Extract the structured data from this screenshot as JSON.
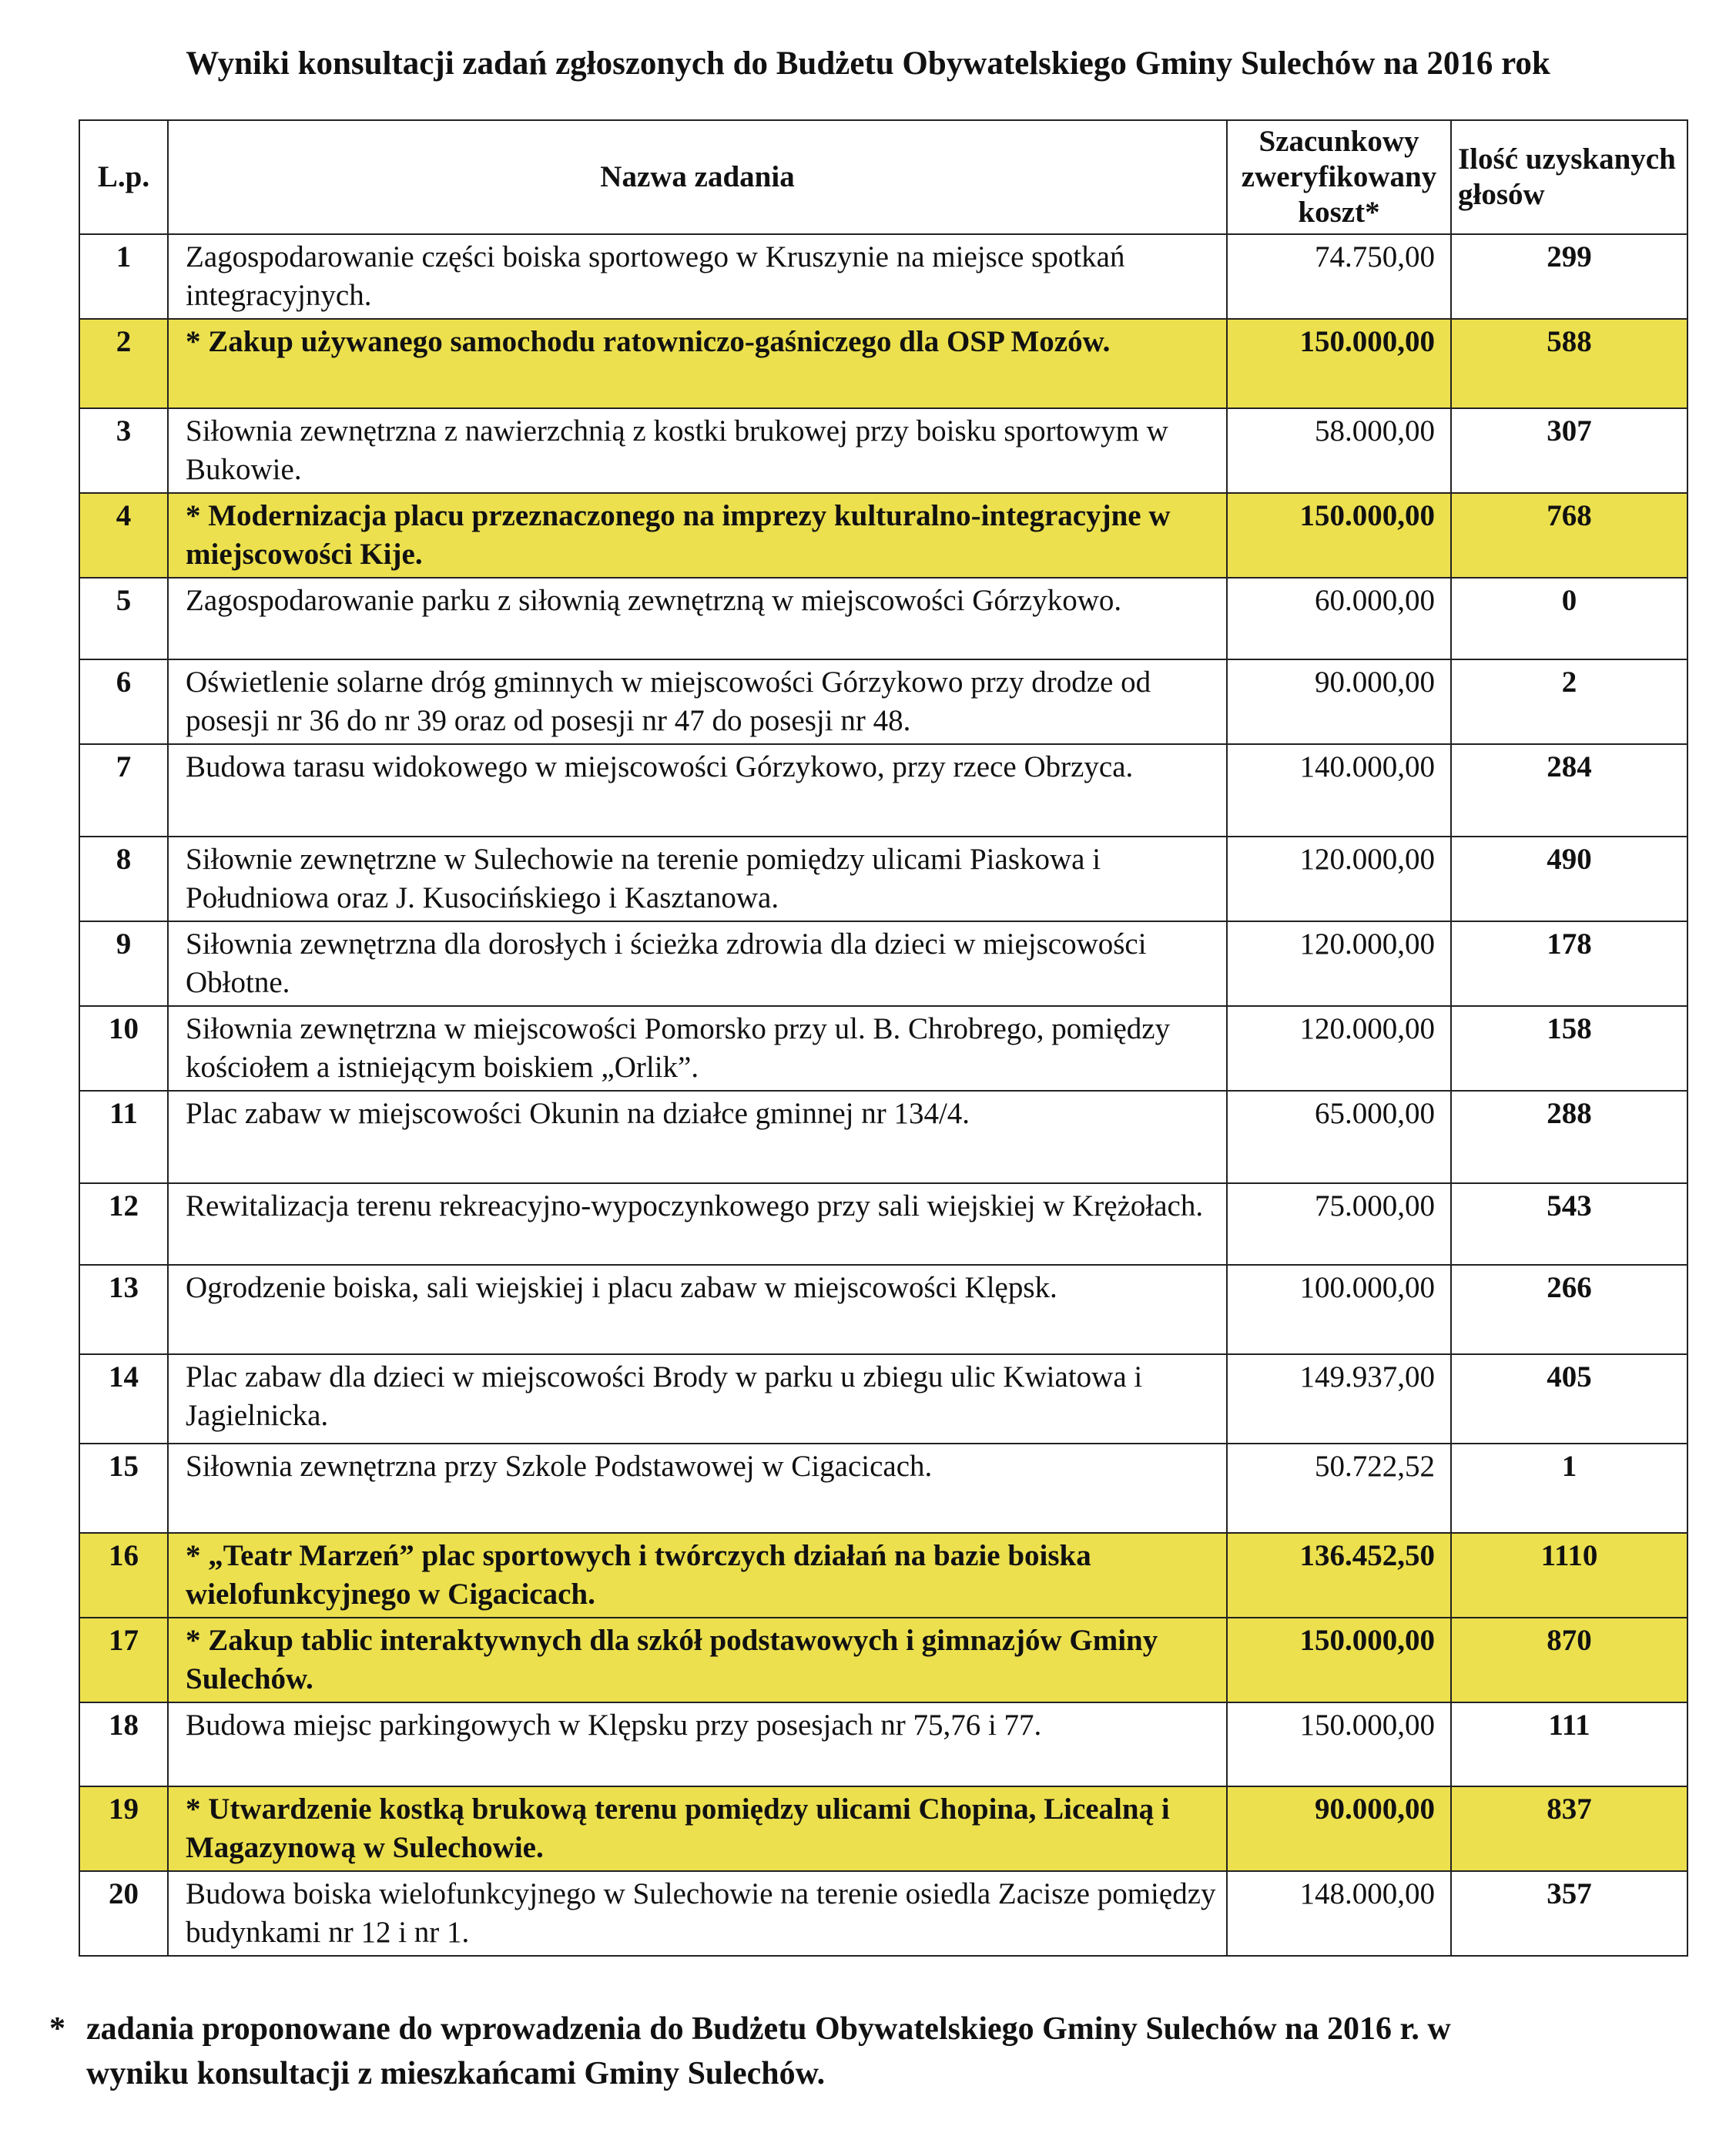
{
  "title": "Wyniki konsultacji zadań zgłoszonych do Budżetu Obywatelskiego Gminy Sulechów na 2016 rok",
  "highlight_color": "#ece04e",
  "table": {
    "headers": {
      "lp": "L.p.",
      "name": "Nazwa zadania",
      "cost": "Szacunkowy zweryfikowany koszt*",
      "votes": "Ilość uzyskanych głosów"
    },
    "rows": [
      {
        "lp": "1",
        "name": "Zagospodarowanie części boiska sportowego w Kruszynie na miejsce spotkań integracyjnych.",
        "cost": "74.750,00",
        "votes": "299",
        "highlighted": false
      },
      {
        "lp": "2",
        "name": "* Zakup używanego samochodu ratowniczo-gaśniczego dla OSP Mozów.",
        "cost": "150.000,00",
        "votes": "588",
        "highlighted": true
      },
      {
        "lp": "3",
        "name": "Siłownia zewnętrzna z nawierzchnią z kostki brukowej przy boisku sportowym w Bukowie.",
        "cost": "58.000,00",
        "votes": "307",
        "highlighted": false
      },
      {
        "lp": "4",
        "name": "* Modernizacja placu przeznaczonego na imprezy kulturalno-integracyjne w miejscowości Kije.",
        "cost": "150.000,00",
        "votes": "768",
        "highlighted": true
      },
      {
        "lp": "5",
        "name": "Zagospodarowanie parku z siłownią zewnętrzną w miejscowości Górzykowo.",
        "cost": "60.000,00",
        "votes": "0",
        "highlighted": false
      },
      {
        "lp": "6",
        "name": "Oświetlenie solarne dróg gminnych w miejscowości Górzykowo przy drodze od posesji nr 36 do nr 39 oraz od posesji nr 47 do posesji nr 48.",
        "cost": "90.000,00",
        "votes": "2",
        "highlighted": false
      },
      {
        "lp": "7",
        "name": "Budowa tarasu widokowego w miejscowości Górzykowo, przy rzece Obrzyca.",
        "cost": "140.000,00",
        "votes": "284",
        "highlighted": false
      },
      {
        "lp": "8",
        "name": "Siłownie zewnętrzne w Sulechowie na terenie pomiędzy ulicami Piaskowa i Południowa oraz J. Kusocińskiego i Kasztanowa.",
        "cost": "120.000,00",
        "votes": "490",
        "highlighted": false
      },
      {
        "lp": "9",
        "name": "Siłownia zewnętrzna dla dorosłych i ścieżka zdrowia dla dzieci w miejscowości Obłotne.",
        "cost": "120.000,00",
        "votes": "178",
        "highlighted": false
      },
      {
        "lp": "10",
        "name": "Siłownia zewnętrzna w miejscowości Pomorsko przy ul. B. Chrobrego, pomiędzy kościołem a istniejącym boiskiem „Orlik”.",
        "cost": "120.000,00",
        "votes": "158",
        "highlighted": false
      },
      {
        "lp": "11",
        "name": "Plac zabaw w miejscowości Okunin na działce gminnej nr 134/4.",
        "cost": "65.000,00",
        "votes": "288",
        "highlighted": false
      },
      {
        "lp": "12",
        "name": "Rewitalizacja terenu rekreacyjno-wypoczynkowego przy sali wiejskiej w Krężołach.",
        "cost": "75.000,00",
        "votes": "543",
        "highlighted": false
      },
      {
        "lp": "13",
        "name": "Ogrodzenie boiska, sali wiejskiej i placu zabaw w miejscowości Klępsk.",
        "cost": "100.000,00",
        "votes": "266",
        "highlighted": false
      },
      {
        "lp": "14",
        "name": "Plac zabaw dla dzieci w miejscowości Brody w parku u zbiegu ulic Kwiatowa i Jagielnicka.",
        "cost": "149.937,00",
        "votes": "405",
        "highlighted": false
      },
      {
        "lp": "15",
        "name": "Siłownia zewnętrzna przy Szkole Podstawowej w Cigacicach.",
        "cost": "50.722,52",
        "votes": "1",
        "highlighted": false
      },
      {
        "lp": "16",
        "name": "* „Teatr Marzeń” plac sportowych i twórczych działań na bazie boiska wielofunkcyjnego w Cigacicach.",
        "cost": "136.452,50",
        "votes": "1110",
        "highlighted": true
      },
      {
        "lp": "17",
        "name": "* Zakup tablic interaktywnych dla szkół podstawowych i gimnazjów Gminy Sulechów.",
        "cost": "150.000,00",
        "votes": "870",
        "highlighted": true
      },
      {
        "lp": "18",
        "name": "Budowa miejsc parkingowych w Klępsku przy posesjach nr 75,76 i 77.",
        "cost": "150.000,00",
        "votes": "111",
        "highlighted": false
      },
      {
        "lp": "19",
        "name": "* Utwardzenie kostką brukową terenu pomiędzy ulicami Chopina, Licealną i Magazynową w Sulechowie.",
        "cost": "90.000,00",
        "votes": "837",
        "highlighted": true
      },
      {
        "lp": "20",
        "name": "Budowa boiska wielofunkcyjnego w Sulechowie na terenie osiedla Zacisze pomiędzy budynkami nr 12 i nr 1.",
        "cost": "148.000,00",
        "votes": "357",
        "highlighted": false
      }
    ]
  },
  "footnote": {
    "marker": "*",
    "text": "zadania proponowane do wprowadzenia do Budżetu Obywatelskiego Gminy Sulechów na 2016 r. w wyniku konsultacji z mieszkańcami Gminy Sulechów."
  }
}
